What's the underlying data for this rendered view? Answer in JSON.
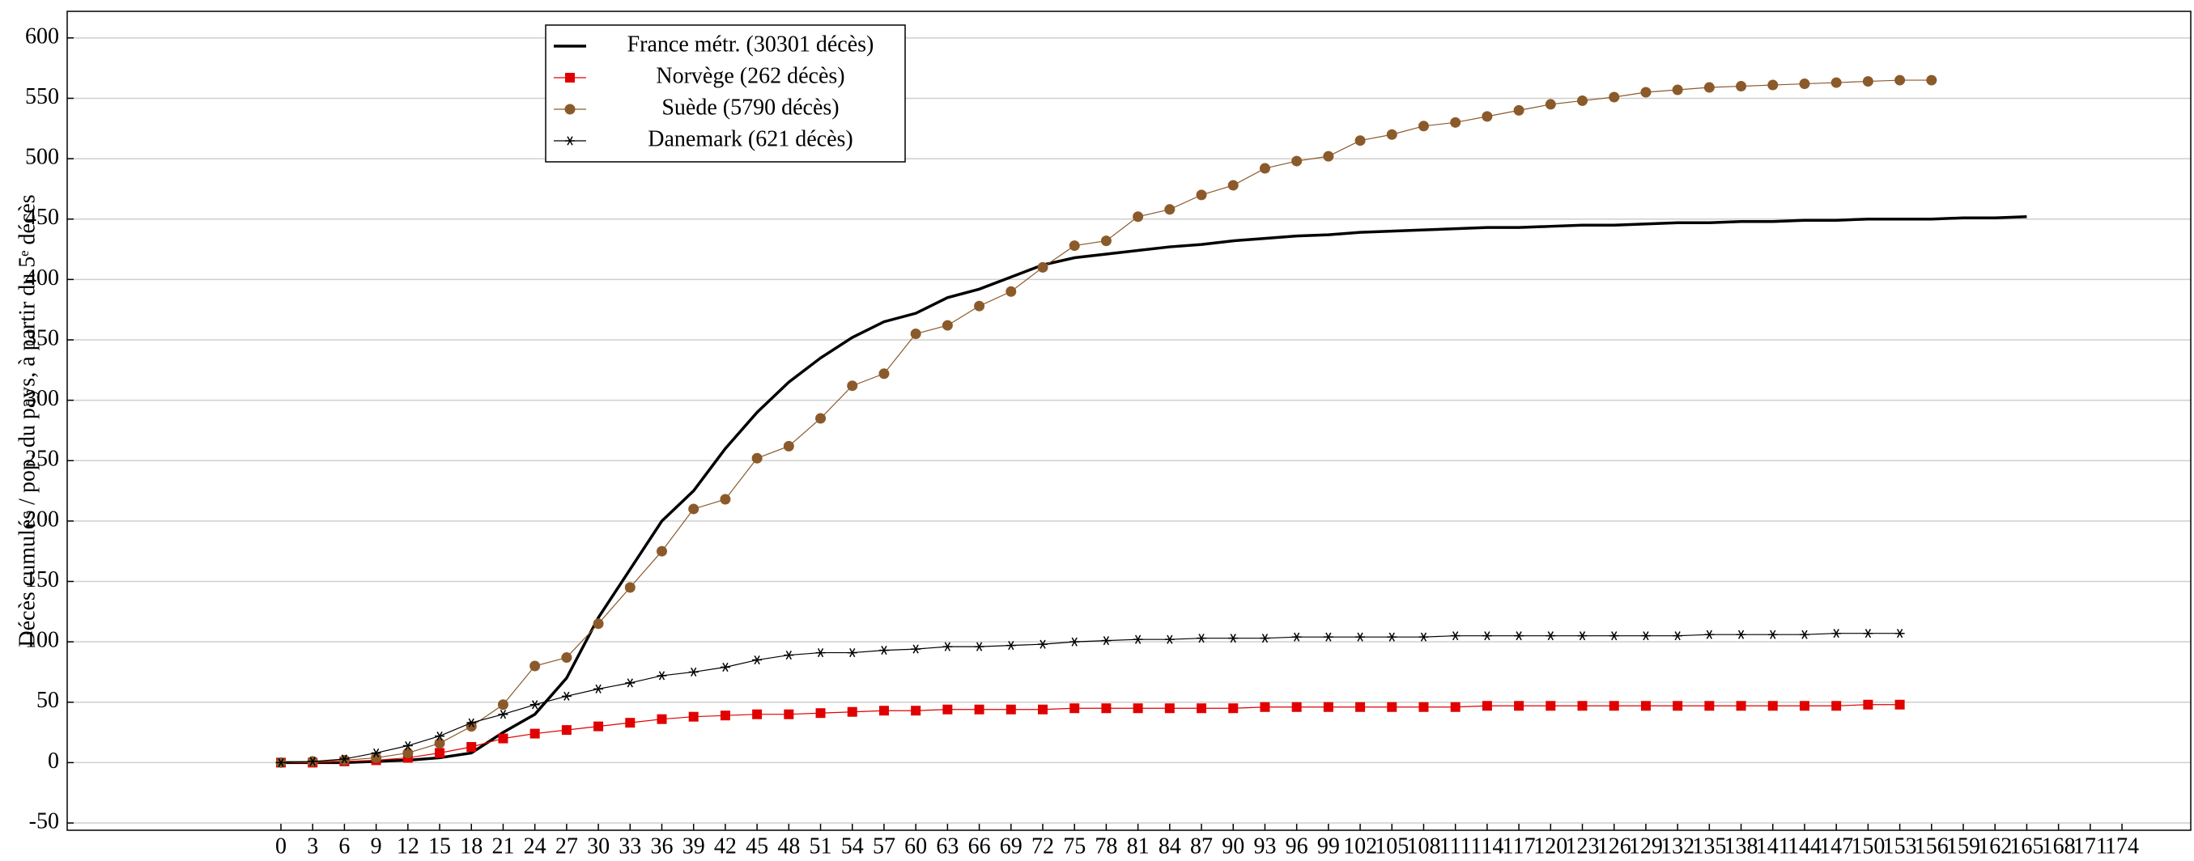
{
  "chart_data": {
    "type": "line",
    "ylabel": "Décès cumulés / pop. du pays, à partir du 5ᵉ décès",
    "x": [
      0,
      3,
      6,
      9,
      12,
      15,
      18,
      21,
      24,
      27,
      30,
      33,
      36,
      39,
      42,
      45,
      48,
      51,
      54,
      57,
      60,
      63,
      66,
      69,
      72,
      75,
      78,
      81,
      84,
      87,
      90,
      93,
      96,
      99,
      102,
      105,
      108,
      111,
      114,
      117,
      120,
      123,
      126,
      129,
      132,
      135,
      138,
      141,
      144,
      147,
      150,
      153,
      156,
      159,
      162,
      165
    ],
    "series": [
      {
        "name": "France métr. (30301 décès)",
        "color": "#000000",
        "marker": "none",
        "values": [
          0,
          0,
          0,
          1,
          2,
          4,
          8,
          25,
          40,
          70,
          120,
          160,
          200,
          225,
          260,
          290,
          315,
          335,
          352,
          365,
          372,
          385,
          392,
          402,
          412,
          418,
          421,
          424,
          427,
          429,
          432,
          434,
          436,
          437,
          439,
          440,
          441,
          442,
          443,
          443,
          444,
          445,
          445,
          446,
          447,
          447,
          448,
          448,
          449,
          449,
          450,
          450,
          450,
          451,
          451,
          452
        ]
      },
      {
        "name": "Norvège (262 décès)",
        "color": "#e00000",
        "marker": "square",
        "values": [
          0,
          0,
          1,
          2,
          4,
          8,
          13,
          20,
          24,
          27,
          30,
          33,
          36,
          38,
          39,
          40,
          40,
          41,
          42,
          43,
          43,
          44,
          44,
          44,
          44,
          45,
          45,
          45,
          45,
          45,
          45,
          46,
          46,
          46,
          46,
          46,
          46,
          46,
          47,
          47,
          47,
          47,
          47,
          47,
          47,
          47,
          47,
          47,
          47,
          47,
          48,
          48,
          null,
          null,
          null,
          null
        ]
      },
      {
        "name": "Suède (5790 décès)",
        "color": "#8b5a2b",
        "marker": "circle",
        "values": [
          0,
          1,
          2,
          4,
          8,
          16,
          30,
          48,
          80,
          87,
          115,
          145,
          175,
          210,
          218,
          252,
          262,
          285,
          312,
          322,
          355,
          362,
          378,
          390,
          410,
          428,
          432,
          452,
          458,
          470,
          478,
          492,
          498,
          502,
          515,
          520,
          527,
          530,
          535,
          540,
          545,
          548,
          551,
          555,
          557,
          559,
          560,
          561,
          562,
          563,
          564,
          565,
          565,
          null,
          null,
          null
        ]
      },
      {
        "name": "Danemark (621 décès)",
        "color": "#000000",
        "marker": "star",
        "values": [
          0,
          1,
          3,
          8,
          14,
          22,
          33,
          40,
          48,
          55,
          61,
          66,
          72,
          75,
          79,
          85,
          89,
          91,
          91,
          93,
          94,
          96,
          96,
          97,
          98,
          100,
          101,
          102,
          102,
          103,
          103,
          103,
          104,
          104,
          104,
          104,
          104,
          105,
          105,
          105,
          105,
          105,
          105,
          105,
          105,
          106,
          106,
          106,
          106,
          107,
          107,
          107,
          null,
          null,
          null,
          null
        ]
      }
    ],
    "xlim": [
      -20.2,
      180.5
    ],
    "xticks": [
      0,
      3,
      6,
      9,
      12,
      15,
      18,
      21,
      24,
      27,
      30,
      33,
      36,
      39,
      42,
      45,
      48,
      51,
      54,
      57,
      60,
      63,
      66,
      69,
      72,
      75,
      78,
      81,
      84,
      87,
      90,
      93,
      96,
      99,
      102,
      105,
      108,
      111,
      114,
      117,
      120,
      123,
      126,
      129,
      132,
      135,
      138,
      141,
      144,
      147,
      150,
      153,
      156,
      159,
      162,
      165,
      168,
      171,
      174
    ],
    "ylim": [
      -56,
      622
    ],
    "yticks": [
      -50,
      0,
      50,
      100,
      150,
      200,
      250,
      300,
      350,
      400,
      450,
      500,
      550,
      600
    ],
    "grid": true,
    "legend": "upper-left"
  }
}
